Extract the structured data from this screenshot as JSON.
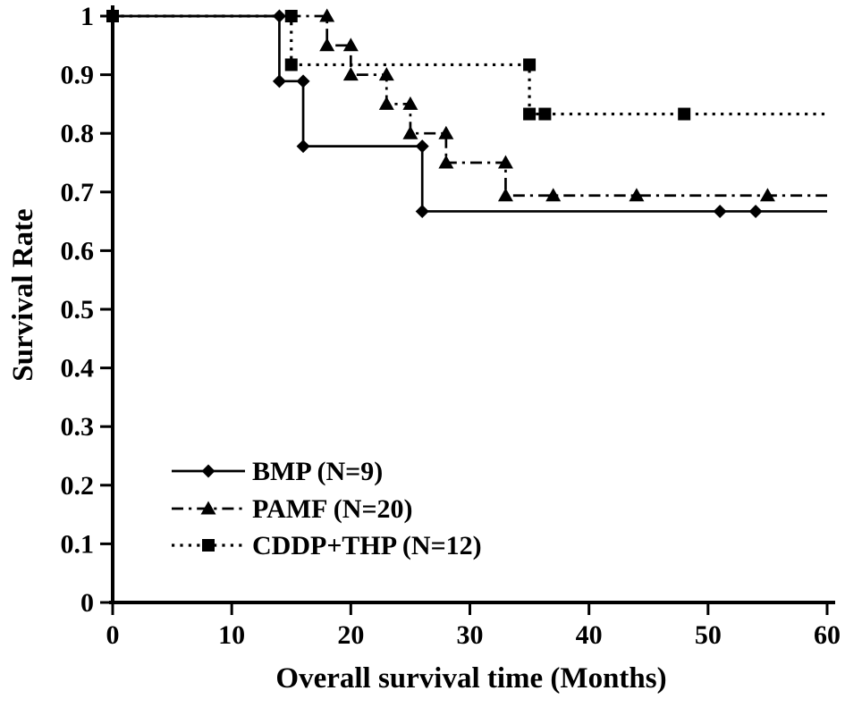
{
  "chart_data": {
    "type": "line",
    "subtype": "kaplan-meier-step-survival",
    "title": "",
    "xlabel": "Overall survival time (Months)",
    "ylabel": "Survival Rate",
    "xlim": [
      0,
      60
    ],
    "ylim": [
      0,
      1
    ],
    "grid": false,
    "background": "#ffffff",
    "color": "#000000",
    "legend_position": "inside-lower-left",
    "x_ticks": [
      {
        "value": 0,
        "label": "0"
      },
      {
        "value": 10,
        "label": "10"
      },
      {
        "value": 20,
        "label": "20"
      },
      {
        "value": 30,
        "label": "30"
      },
      {
        "value": 40,
        "label": "40"
      },
      {
        "value": 50,
        "label": "50"
      },
      {
        "value": 60,
        "label": "60"
      }
    ],
    "y_ticks": [
      {
        "value": 1.0,
        "label": "1"
      },
      {
        "value": 0.9,
        "label": "0.9"
      },
      {
        "value": 0.8,
        "label": "0.8"
      },
      {
        "value": 0.7,
        "label": "0.7"
      },
      {
        "value": 0.6,
        "label": "0.6"
      },
      {
        "value": 0.5,
        "label": "0.5"
      },
      {
        "value": 0.4,
        "label": "0.4"
      },
      {
        "value": 0.3,
        "label": "0.3"
      },
      {
        "value": 0.2,
        "label": "0.2"
      },
      {
        "value": 0.1,
        "label": "0.1"
      },
      {
        "value": 0.0,
        "label": "0"
      }
    ],
    "series": [
      {
        "id": "bmp",
        "name": "BMP (N=9)",
        "n": 9,
        "marker": "diamond",
        "line_style": "solid",
        "start": [
          0,
          1
        ],
        "drops": [
          [
            14,
            0.889
          ],
          [
            16,
            0.778
          ],
          [
            26,
            0.667
          ]
        ],
        "end_x": 60,
        "markers": [
          [
            14,
            1
          ],
          [
            14,
            0.889
          ],
          [
            16,
            0.889
          ],
          [
            16,
            0.778
          ],
          [
            26,
            0.778
          ],
          [
            26,
            0.667
          ],
          [
            51,
            0.667
          ],
          [
            54,
            0.667
          ]
        ]
      },
      {
        "id": "pamf",
        "name": "PAMF (N=20)",
        "n": 20,
        "marker": "triangle",
        "line_style": "dash-dot",
        "start": [
          0,
          1
        ],
        "drops": [
          [
            18,
            0.95
          ],
          [
            20,
            0.9
          ],
          [
            23,
            0.85
          ],
          [
            25,
            0.8
          ],
          [
            28,
            0.75
          ],
          [
            33,
            0.694
          ]
        ],
        "end_x": 60,
        "markers": [
          [
            18,
            1
          ],
          [
            18,
            0.95
          ],
          [
            20,
            0.95
          ],
          [
            20,
            0.9
          ],
          [
            23,
            0.9
          ],
          [
            23,
            0.85
          ],
          [
            25,
            0.85
          ],
          [
            25,
            0.8
          ],
          [
            28,
            0.8
          ],
          [
            28,
            0.75
          ],
          [
            33,
            0.75
          ],
          [
            33,
            0.694
          ],
          [
            37,
            0.694
          ],
          [
            44,
            0.694
          ],
          [
            55,
            0.694
          ]
        ]
      },
      {
        "id": "cddp-thp",
        "name": "CDDP+THP (N=12)",
        "n": 12,
        "marker": "square",
        "line_style": "dotted",
        "start": [
          0,
          1
        ],
        "drops": [
          [
            15,
            0.917
          ],
          [
            35,
            0.833
          ]
        ],
        "end_x": 60,
        "markers": [
          [
            0,
            1
          ],
          [
            15,
            1
          ],
          [
            15,
            0.917
          ],
          [
            35,
            0.917
          ],
          [
            35,
            0.833
          ],
          [
            36.3,
            0.833
          ],
          [
            48,
            0.833
          ]
        ]
      }
    ]
  }
}
